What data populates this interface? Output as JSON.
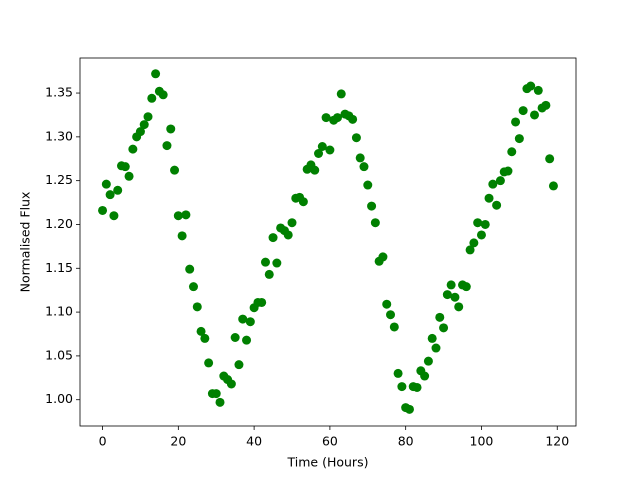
{
  "chart_data": {
    "type": "scatter",
    "x_label": "Time (Hours)",
    "y_label": "Normalised Flux",
    "color": "#008000",
    "grid": false,
    "xlim": [
      -5.95,
      124.95
    ],
    "ylim": [
      0.97,
      1.39
    ],
    "xticks": [
      0,
      20,
      40,
      60,
      80,
      100,
      120
    ],
    "yticks": [
      {
        "value": 1,
        "label": "1.00"
      },
      1.05,
      {
        "value": 1.1,
        "label": "1.10"
      },
      1.15,
      {
        "value": 1.2,
        "label": "1.20"
      },
      1.25,
      {
        "value": 1.3,
        "label": "1.30"
      },
      1.35
    ],
    "x": [
      0,
      1,
      2,
      3,
      4,
      5,
      6,
      7,
      8,
      9,
      10,
      11,
      12,
      13,
      14,
      15,
      16,
      17,
      18,
      19,
      20,
      21,
      22,
      23,
      24,
      25,
      26,
      27,
      28,
      29,
      30,
      31,
      32,
      33,
      34,
      35,
      36,
      37,
      38,
      39,
      40,
      41,
      42,
      43,
      44,
      45,
      46,
      47,
      48,
      49,
      50,
      51,
      52,
      53,
      54,
      55,
      56,
      57,
      58,
      59,
      60,
      61,
      62,
      63,
      64,
      65,
      66,
      67,
      68,
      69,
      70,
      71,
      72,
      73,
      74,
      75,
      76,
      77,
      78,
      79,
      80,
      81,
      82,
      83,
      84,
      85,
      86,
      87,
      88,
      89,
      90,
      91,
      92,
      93,
      94,
      95,
      96,
      97,
      98,
      99,
      100,
      101,
      102,
      103,
      104,
      105,
      106,
      107,
      108,
      109,
      110,
      111,
      112,
      113,
      114,
      115,
      116,
      117,
      118,
      119
    ],
    "values": [
      1.216,
      1.246,
      1.234,
      1.21,
      1.239,
      1.267,
      1.266,
      1.255,
      1.286,
      1.3,
      1.306,
      1.314,
      1.323,
      1.344,
      1.372,
      1.352,
      1.348,
      1.29,
      1.309,
      1.262,
      1.21,
      1.187,
      1.211,
      1.149,
      1.129,
      1.106,
      1.078,
      1.07,
      1.042,
      1.007,
      1.007,
      0.997,
      1.027,
      1.023,
      1.018,
      1.071,
      1.04,
      1.092,
      1.068,
      1.089,
      1.105,
      1.111,
      1.111,
      1.157,
      1.143,
      1.185,
      1.156,
      1.196,
      1.193,
      1.188,
      1.202,
      1.23,
      1.231,
      1.226,
      1.263,
      1.268,
      1.262,
      1.281,
      1.289,
      1.322,
      1.285,
      1.319,
      1.322,
      1.349,
      1.326,
      1.324,
      1.32,
      1.299,
      1.276,
      1.266,
      1.245,
      1.221,
      1.202,
      1.158,
      1.163,
      1.109,
      1.097,
      1.083,
      1.03,
      1.015,
      0.991,
      0.989,
      1.015,
      1.014,
      1.033,
      1.027,
      1.044,
      1.07,
      1.059,
      1.094,
      1.082,
      1.12,
      1.131,
      1.117,
      1.106,
      1.131,
      1.129,
      1.171,
      1.179,
      1.202,
      1.188,
      1.2,
      1.23,
      1.246,
      1.222,
      1.25,
      1.26,
      1.261,
      1.283,
      1.317,
      1.298,
      1.33,
      1.355,
      1.358,
      1.325,
      1.353,
      1.333,
      1.336,
      1.275,
      1.244
    ]
  }
}
